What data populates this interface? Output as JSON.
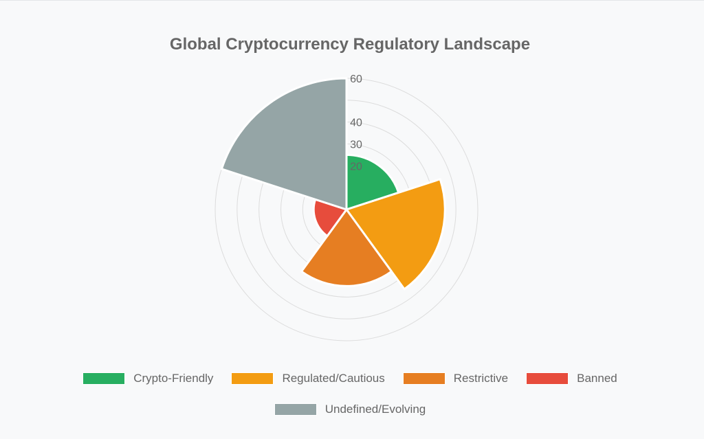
{
  "chart_data": {
    "type": "polarArea",
    "title": "Global Cryptocurrency Regulatory Landscape",
    "categories": [
      "Crypto-Friendly",
      "Regulated/Cautious",
      "Restrictive",
      "Banned",
      "Undefined/Evolving"
    ],
    "values": [
      25,
      45,
      35,
      15,
      60
    ],
    "colors": [
      "#27ae60",
      "#f39c12",
      "#e67e22",
      "#e74c3c",
      "#95a5a6"
    ],
    "r_ticks": [
      20,
      30,
      40,
      60
    ],
    "r_max": 60,
    "grid": true,
    "legend_position": "bottom"
  }
}
